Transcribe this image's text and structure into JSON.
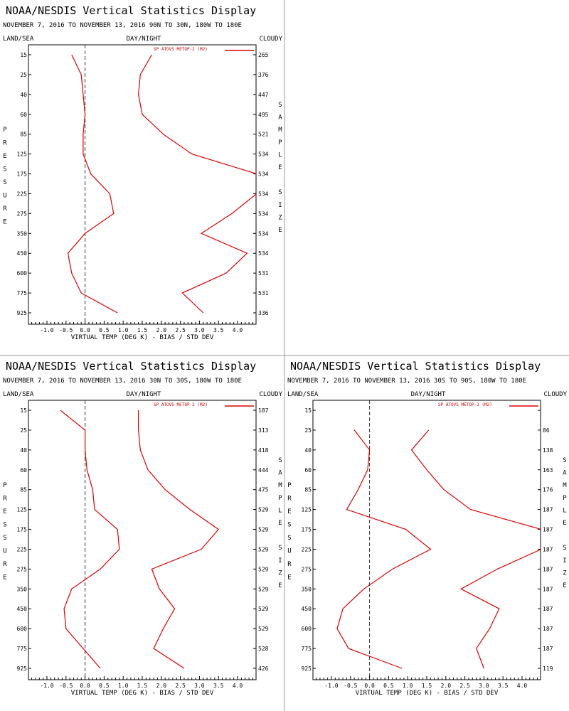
{
  "colors": {
    "series": "#dd0000",
    "frame": "#000000",
    "separator": "#999999",
    "zero_line": "#333333"
  },
  "headers": {
    "left": "LAND/SEA",
    "center": "DAY/NIGHT",
    "right": "CLOUDY"
  },
  "side_labels": {
    "left": [
      "P",
      "R",
      "E",
      "S",
      "S",
      "U",
      "R",
      "E"
    ],
    "right": [
      "S",
      "A",
      "M",
      "P",
      "L",
      "E",
      "",
      "S",
      "I",
      "Z",
      "E"
    ]
  },
  "panels": [
    {
      "title": "NOAA/NESDIS Vertical Statistics Display",
      "subtitle": "NOVEMBER 7, 2016 TO NOVEMBER 13, 2016 90N TO 30N, 180W TO 180E",
      "legend": "SP ATOVS METOP-2 (M2)",
      "xlabel": "VIRTUAL TEMP (DEG K) - BIAS / STD DEV",
      "chart_data": {
        "type": "line",
        "pressure_levels": [
          "15",
          "25",
          "40",
          "60",
          "85",
          "125",
          "175",
          "225",
          "275",
          "350",
          "450",
          "600",
          "775",
          "925"
        ],
        "x_ticks": [
          "-1.0",
          "-0.5",
          "0.0",
          "0.5",
          "1.0",
          "1.5",
          "2.0",
          "2.5",
          "3.0",
          "3.5",
          "4.0"
        ],
        "xlim": [
          -1.5,
          4.5
        ],
        "sample_size": [
          "265",
          "376",
          "447",
          "495",
          "521",
          "534",
          "534",
          "534",
          "534",
          "534",
          "534",
          "531",
          "531",
          "336"
        ],
        "series": [
          {
            "values": [
              -0.35,
              -0.1,
              -0.05,
              0.0,
              -0.05,
              -0.05,
              0.15,
              0.65,
              0.75,
              0.0,
              -0.45,
              -0.35,
              -0.1,
              0.85
            ]
          },
          {
            "values": [
              1.75,
              1.45,
              1.4,
              1.5,
              2.05,
              2.8,
              4.5,
              4.5,
              3.85,
              3.05,
              4.25,
              3.7,
              2.55,
              3.1
            ]
          }
        ]
      }
    },
    {
      "title": "NOAA/NESDIS Vertical Statistics Display",
      "subtitle": "NOVEMBER 7, 2016 TO NOVEMBER 13, 2016 30N TO 30S, 180W TO 180E",
      "legend": "SP ATOVS METOP-2 (M2)",
      "xlabel": "VIRTUAL TEMP (DEG K) - BIAS / STD DEV",
      "chart_data": {
        "type": "line",
        "pressure_levels": [
          "15",
          "25",
          "40",
          "60",
          "85",
          "125",
          "175",
          "225",
          "275",
          "350",
          "450",
          "600",
          "775",
          "925"
        ],
        "x_ticks": [
          "-1.0",
          "-0.5",
          "0.0",
          "0.5",
          "1.0",
          "1.5",
          "2.0",
          "2.5",
          "3.0",
          "3.5",
          "4.0"
        ],
        "xlim": [
          -1.5,
          4.5
        ],
        "sample_size": [
          "187",
          "313",
          "418",
          "444",
          "475",
          "529",
          "529",
          "529",
          "529",
          "529",
          "529",
          "529",
          "528",
          "426"
        ],
        "series": [
          {
            "values": [
              -0.65,
              0.0,
              0.0,
              0.05,
              0.2,
              0.25,
              0.85,
              0.9,
              0.4,
              -0.35,
              -0.55,
              -0.5,
              -0.05,
              0.4
            ]
          },
          {
            "values": [
              1.4,
              1.4,
              1.45,
              1.65,
              2.1,
              2.75,
              3.5,
              3.05,
              1.75,
              1.95,
              2.35,
              2.05,
              1.8,
              2.6
            ]
          }
        ]
      }
    },
    {
      "title": "NOAA/NESDIS Vertical Statistics Display",
      "subtitle": "NOVEMBER 7, 2016 TO NOVEMBER 13, 2016 30S TO 90S, 180W TO 180E",
      "legend": "SP ATOVS METOP-2 (M2)",
      "xlabel": "VIRTUAL TEMP (DEG K) - BIAS / STD DEV",
      "chart_data": {
        "type": "line",
        "pressure_levels": [
          "15",
          "25",
          "40",
          "60",
          "85",
          "125",
          "175",
          "225",
          "275",
          "350",
          "450",
          "600",
          "775",
          "925"
        ],
        "x_ticks": [
          "-1.0",
          "-0.5",
          "0.0",
          "0.5",
          "1.0",
          "1.5",
          "2.0",
          "2.5",
          "3.0",
          "3.5",
          "4.0"
        ],
        "xlim": [
          -1.5,
          4.5
        ],
        "sample_size": [
          "",
          "86",
          "138",
          "163",
          "176",
          "187",
          "187",
          "187",
          "187",
          "187",
          "187",
          "187",
          "187",
          "119"
        ],
        "series": [
          {
            "values": [
              null,
              -0.4,
              0.0,
              -0.05,
              -0.3,
              -0.6,
              0.95,
              1.6,
              0.6,
              -0.15,
              -0.7,
              -0.85,
              -0.55,
              0.85
            ]
          },
          {
            "values": [
              null,
              1.55,
              1.1,
              1.5,
              1.95,
              2.65,
              4.5,
              4.5,
              3.35,
              2.4,
              3.4,
              3.15,
              2.8,
              3.0
            ]
          }
        ]
      }
    }
  ]
}
